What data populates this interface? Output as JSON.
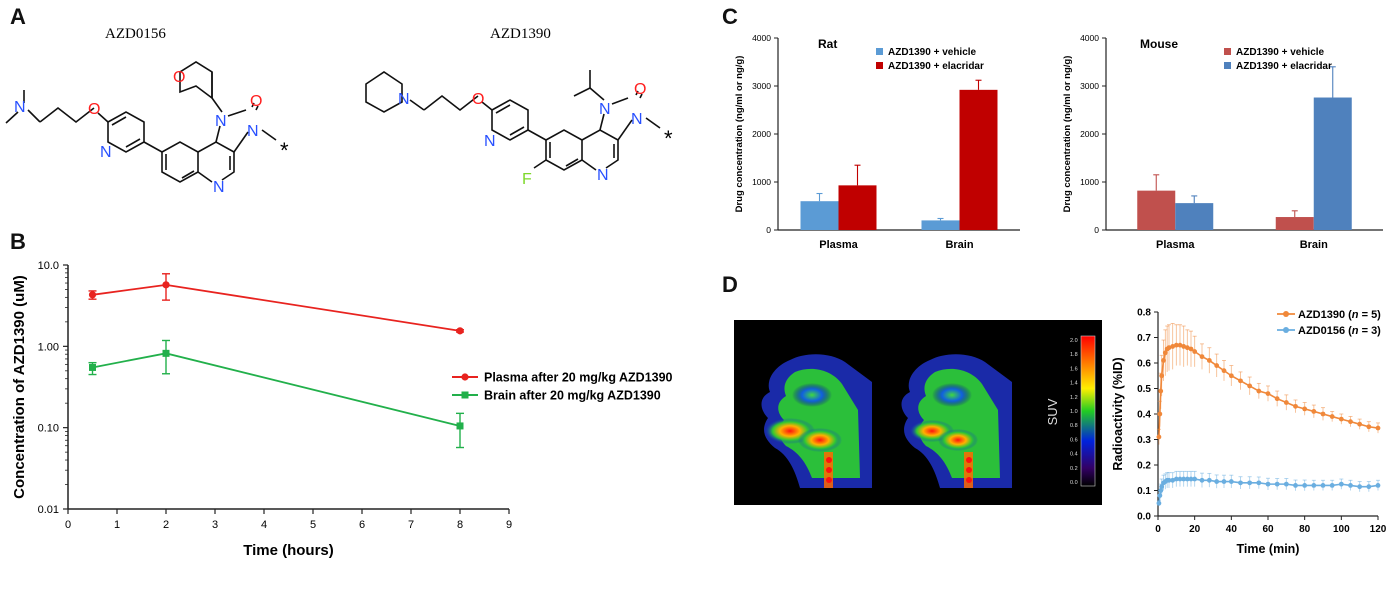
{
  "panels": {
    "A": {
      "letter": "A",
      "compounds": [
        {
          "name": "AZD0156",
          "atoms": {
            "N": "N",
            "O": "O",
            "F": "",
            "star": "*"
          }
        },
        {
          "name": "AZD1390",
          "atoms": {
            "N": "N",
            "O": "O",
            "F": "F",
            "star": "*"
          }
        }
      ]
    },
    "B": {
      "letter": "B"
    },
    "C": {
      "letter": "C"
    },
    "D": {
      "letter": "D"
    }
  },
  "colors": {
    "plasma_red": "#e8231f",
    "brain_green": "#22b04b",
    "vehicle_blue": "#5b9bd5",
    "elacridar_red": "#c00000",
    "mouse_red": "#c0504d",
    "mouse_blue": "#4f81bd",
    "azd1390_orange": "#f0883a",
    "azd0156_blue": "#6aaee0",
    "hetero_N": "#2850ff",
    "hetero_O": "#ff2020",
    "hetero_F": "#7dd82a"
  },
  "chart_data": [
    {
      "id": "B",
      "type": "line",
      "yscale": "log",
      "xlabel": "Time (hours)",
      "ylabel": "Concentration of AZD1390 (uM)",
      "xlim": [
        0,
        9
      ],
      "ylim": [
        0.01,
        10
      ],
      "xticks": [
        "0",
        "1",
        "2",
        "3",
        "4",
        "5",
        "6",
        "7",
        "8",
        "9"
      ],
      "yticks": [
        "0.01",
        "0.10",
        "1.00",
        "10.0"
      ],
      "legend_position": "right",
      "series": [
        {
          "name": "Plasma after 20 mg/kg AZD1390",
          "x": [
            0.5,
            2,
            8
          ],
          "y": [
            4.3,
            5.7,
            1.55
          ],
          "err_low": [
            3.8,
            3.7,
            1.5
          ],
          "err_high": [
            4.8,
            7.8,
            1.6
          ]
        },
        {
          "name": "Brain after 20 mg/kg AZD1390",
          "x": [
            0.5,
            2,
            8
          ],
          "y": [
            0.55,
            0.82,
            0.105
          ],
          "err_low": [
            0.45,
            0.46,
            0.057
          ],
          "err_high": [
            0.63,
            1.18,
            0.15
          ]
        }
      ]
    },
    {
      "id": "C-rat",
      "type": "bar",
      "title": "Rat",
      "ylabel": "Drug concentration (ng/ml or ng/g)",
      "categories": [
        "Plasma",
        "Brain"
      ],
      "ylim": [
        0,
        4000
      ],
      "yticks": [
        "0",
        "1000",
        "2000",
        "3000",
        "4000"
      ],
      "legend_position": "top-right",
      "series": [
        {
          "name": "AZD1390 + vehicle",
          "values": [
            600,
            200
          ],
          "err": [
            160,
            40
          ]
        },
        {
          "name": "AZD1390 + elacridar",
          "values": [
            930,
            2920
          ],
          "err": [
            420,
            200
          ]
        }
      ]
    },
    {
      "id": "C-mouse",
      "type": "bar",
      "title": "Mouse",
      "ylabel": "Drug concentration (ng/ml or ng/g)",
      "categories": [
        "Plasma",
        "Brain"
      ],
      "ylim": [
        0,
        4000
      ],
      "yticks": [
        "0",
        "1000",
        "2000",
        "3000",
        "4000"
      ],
      "legend_position": "top-right",
      "series": [
        {
          "name": "AZD1390 + vehicle",
          "values": [
            820,
            270
          ],
          "err": [
            330,
            130
          ]
        },
        {
          "name": "AZD1390 + elacridar",
          "values": [
            560,
            2760
          ],
          "err": [
            150,
            640
          ]
        }
      ]
    },
    {
      "id": "D",
      "type": "line",
      "xlabel": "Time (min)",
      "ylabel": "Radioactivity (%ID)",
      "xlim": [
        0,
        120
      ],
      "ylim": [
        0,
        0.8
      ],
      "xticks": [
        "0",
        "20",
        "40",
        "60",
        "80",
        "100",
        "120"
      ],
      "yticks": [
        "0.0",
        "0.1",
        "0.2",
        "0.3",
        "0.4",
        "0.5",
        "0.6",
        "0.7",
        "0.8"
      ],
      "legend_position": "top-right",
      "series": [
        {
          "name": "AZD1390",
          "n_label": "n",
          "n_value": "= 5)",
          "x": [
            0.5,
            1,
            1.5,
            2,
            3,
            4,
            5,
            6,
            8,
            10,
            12,
            14,
            16,
            18,
            20,
            24,
            28,
            32,
            36,
            40,
            45,
            50,
            55,
            60,
            65,
            70,
            75,
            80,
            85,
            90,
            95,
            100,
            105,
            110,
            115,
            120
          ],
          "y": [
            0.31,
            0.4,
            0.49,
            0.55,
            0.61,
            0.64,
            0.655,
            0.66,
            0.665,
            0.67,
            0.67,
            0.665,
            0.66,
            0.655,
            0.645,
            0.625,
            0.61,
            0.59,
            0.57,
            0.55,
            0.53,
            0.51,
            0.49,
            0.48,
            0.46,
            0.445,
            0.43,
            0.42,
            0.41,
            0.4,
            0.39,
            0.38,
            0.37,
            0.36,
            0.35,
            0.345
          ],
          "err": [
            0.03,
            0.05,
            0.07,
            0.08,
            0.08,
            0.09,
            0.09,
            0.09,
            0.09,
            0.08,
            0.08,
            0.08,
            0.07,
            0.07,
            0.06,
            0.05,
            0.05,
            0.045,
            0.04,
            0.04,
            0.035,
            0.035,
            0.03,
            0.03,
            0.03,
            0.03,
            0.025,
            0.025,
            0.025,
            0.025,
            0.02,
            0.02,
            0.02,
            0.02,
            0.02,
            0.02
          ]
        },
        {
          "name": "AZD0156",
          "n_label": "n",
          "n_value": "= 3)",
          "x": [
            0.5,
            1,
            1.5,
            2,
            3,
            4,
            5,
            6,
            8,
            10,
            12,
            14,
            16,
            18,
            20,
            24,
            28,
            32,
            36,
            40,
            45,
            50,
            55,
            60,
            65,
            70,
            75,
            80,
            85,
            90,
            95,
            100,
            105,
            110,
            115,
            120
          ],
          "y": [
            0.05,
            0.08,
            0.1,
            0.115,
            0.13,
            0.135,
            0.14,
            0.14,
            0.14,
            0.145,
            0.145,
            0.145,
            0.145,
            0.145,
            0.145,
            0.14,
            0.14,
            0.135,
            0.135,
            0.135,
            0.13,
            0.13,
            0.13,
            0.125,
            0.125,
            0.125,
            0.12,
            0.12,
            0.12,
            0.12,
            0.12,
            0.125,
            0.12,
            0.115,
            0.115,
            0.12
          ],
          "err": [
            0.01,
            0.02,
            0.025,
            0.03,
            0.03,
            0.03,
            0.03,
            0.03,
            0.03,
            0.03,
            0.03,
            0.03,
            0.03,
            0.03,
            0.03,
            0.028,
            0.027,
            0.026,
            0.025,
            0.025,
            0.024,
            0.024,
            0.023,
            0.023,
            0.022,
            0.022,
            0.021,
            0.021,
            0.02,
            0.02,
            0.02,
            0.02,
            0.02,
            0.02,
            0.02,
            0.02
          ]
        }
      ]
    },
    {
      "id": "D-colorbar",
      "type": "heatmap",
      "label": "SUV",
      "ticks": [
        "2.0",
        "1.8",
        "1.6",
        "1.4",
        "1.2",
        "1.0",
        "0.8",
        "0.6",
        "0.4",
        "0.2",
        "0.0"
      ]
    }
  ]
}
